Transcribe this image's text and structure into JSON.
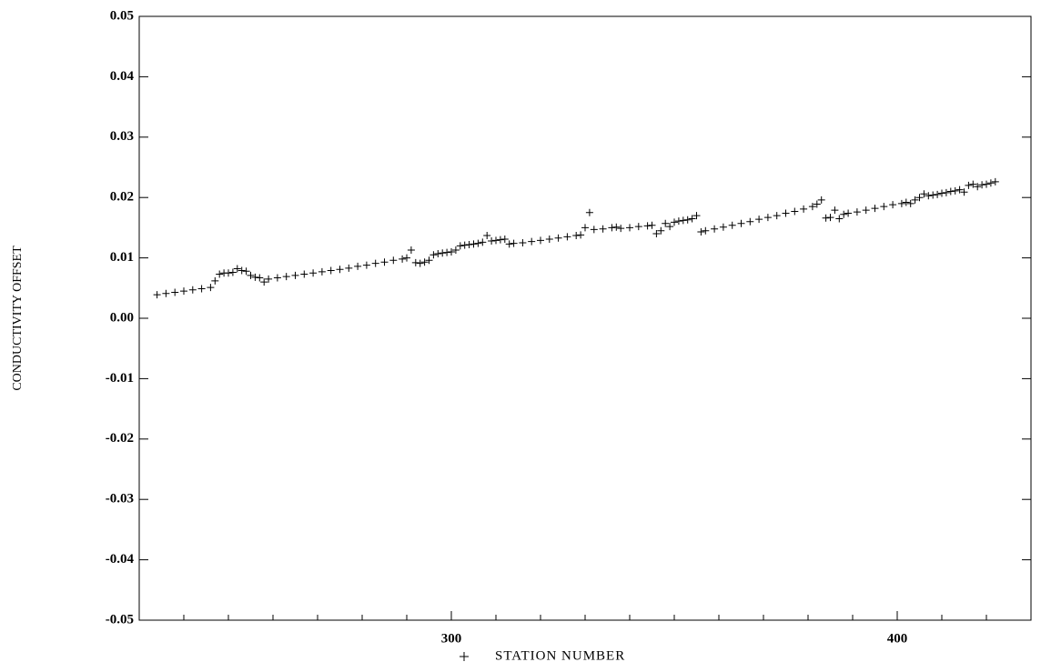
{
  "chart_data": {
    "type": "scatter",
    "x_label": "STATION NUMBER",
    "y_label": "CONDUCTIVITY OFFSET",
    "xlim": [
      230,
      430
    ],
    "ylim": [
      -0.05,
      0.05
    ],
    "xticks": [
      300,
      400
    ],
    "xminorticks": [
      240,
      250,
      260,
      270,
      280,
      290,
      310,
      320,
      330,
      340,
      350,
      360,
      370,
      380,
      390,
      410,
      420
    ],
    "yticks": [
      -0.05,
      -0.04,
      -0.03,
      -0.02,
      -0.01,
      {
        "value": 0,
        "label": "0.00"
      },
      0.01,
      0.02,
      0.03,
      0.04,
      0.05
    ],
    "color": "#000000",
    "x": [
      234,
      236,
      238,
      240,
      242,
      244,
      246,
      247,
      248,
      249,
      250,
      251,
      252,
      253,
      254,
      255,
      256,
      257,
      258,
      259,
      261,
      263,
      265,
      267,
      269,
      271,
      273,
      275,
      277,
      279,
      281,
      283,
      285,
      287,
      289,
      290,
      291,
      292,
      293,
      294,
      295,
      296,
      297,
      298,
      299,
      300,
      301,
      302,
      303,
      304,
      305,
      306,
      307,
      308,
      309,
      310,
      311,
      312,
      313,
      314,
      316,
      318,
      320,
      322,
      324,
      326,
      328,
      329,
      330,
      331,
      332,
      334,
      336,
      337,
      338,
      340,
      342,
      344,
      345,
      346,
      347,
      348,
      349,
      350,
      351,
      352,
      353,
      354,
      355,
      356,
      357,
      359,
      361,
      363,
      365,
      367,
      369,
      371,
      373,
      375,
      377,
      379,
      381,
      382,
      383,
      384,
      385,
      386,
      387,
      388,
      389,
      391,
      393,
      395,
      397,
      399,
      401,
      402,
      403,
      404,
      405,
      406,
      407,
      408,
      409,
      410,
      411,
      412,
      413,
      414,
      415,
      416,
      417,
      418,
      419,
      420,
      421,
      422
    ],
    "values": [
      0.0039,
      0.0041,
      0.0043,
      0.0045,
      0.0047,
      0.0049,
      0.0051,
      0.0062,
      0.0073,
      0.0075,
      0.0075,
      0.0076,
      0.0082,
      0.0079,
      0.0078,
      0.0071,
      0.0068,
      0.0067,
      0.006,
      0.0065,
      0.0067,
      0.0069,
      0.0071,
      0.0073,
      0.0075,
      0.0077,
      0.0079,
      0.0081,
      0.0083,
      0.0086,
      0.0088,
      0.0091,
      0.0093,
      0.0096,
      0.0098,
      0.01,
      0.0113,
      0.0092,
      0.0091,
      0.0093,
      0.0096,
      0.0105,
      0.0107,
      0.0108,
      0.0109,
      0.011,
      0.0113,
      0.012,
      0.0121,
      0.0122,
      0.0123,
      0.0124,
      0.0126,
      0.0137,
      0.0128,
      0.0129,
      0.013,
      0.0131,
      0.0123,
      0.0124,
      0.0125,
      0.0127,
      0.0129,
      0.0131,
      0.0133,
      0.0135,
      0.0137,
      0.0138,
      0.015,
      0.0175,
      0.0147,
      0.0148,
      0.015,
      0.0151,
      0.0149,
      0.015,
      0.0152,
      0.0153,
      0.0154,
      0.014,
      0.0145,
      0.0157,
      0.0152,
      0.0159,
      0.0161,
      0.0162,
      0.0163,
      0.0165,
      0.017,
      0.0143,
      0.0145,
      0.0148,
      0.0151,
      0.0154,
      0.0157,
      0.016,
      0.0164,
      0.0167,
      0.017,
      0.0174,
      0.0177,
      0.0181,
      0.0185,
      0.0189,
      0.0196,
      0.0166,
      0.0167,
      0.0179,
      0.0165,
      0.0172,
      0.0174,
      0.0176,
      0.0179,
      0.0182,
      0.0185,
      0.0188,
      0.019,
      0.0192,
      0.019,
      0.0196,
      0.02,
      0.0206,
      0.0203,
      0.0204,
      0.0205,
      0.0207,
      0.0208,
      0.021,
      0.0211,
      0.0213,
      0.0209,
      0.022,
      0.0222,
      0.0218,
      0.0221,
      0.0222,
      0.0224,
      0.0226
    ]
  }
}
